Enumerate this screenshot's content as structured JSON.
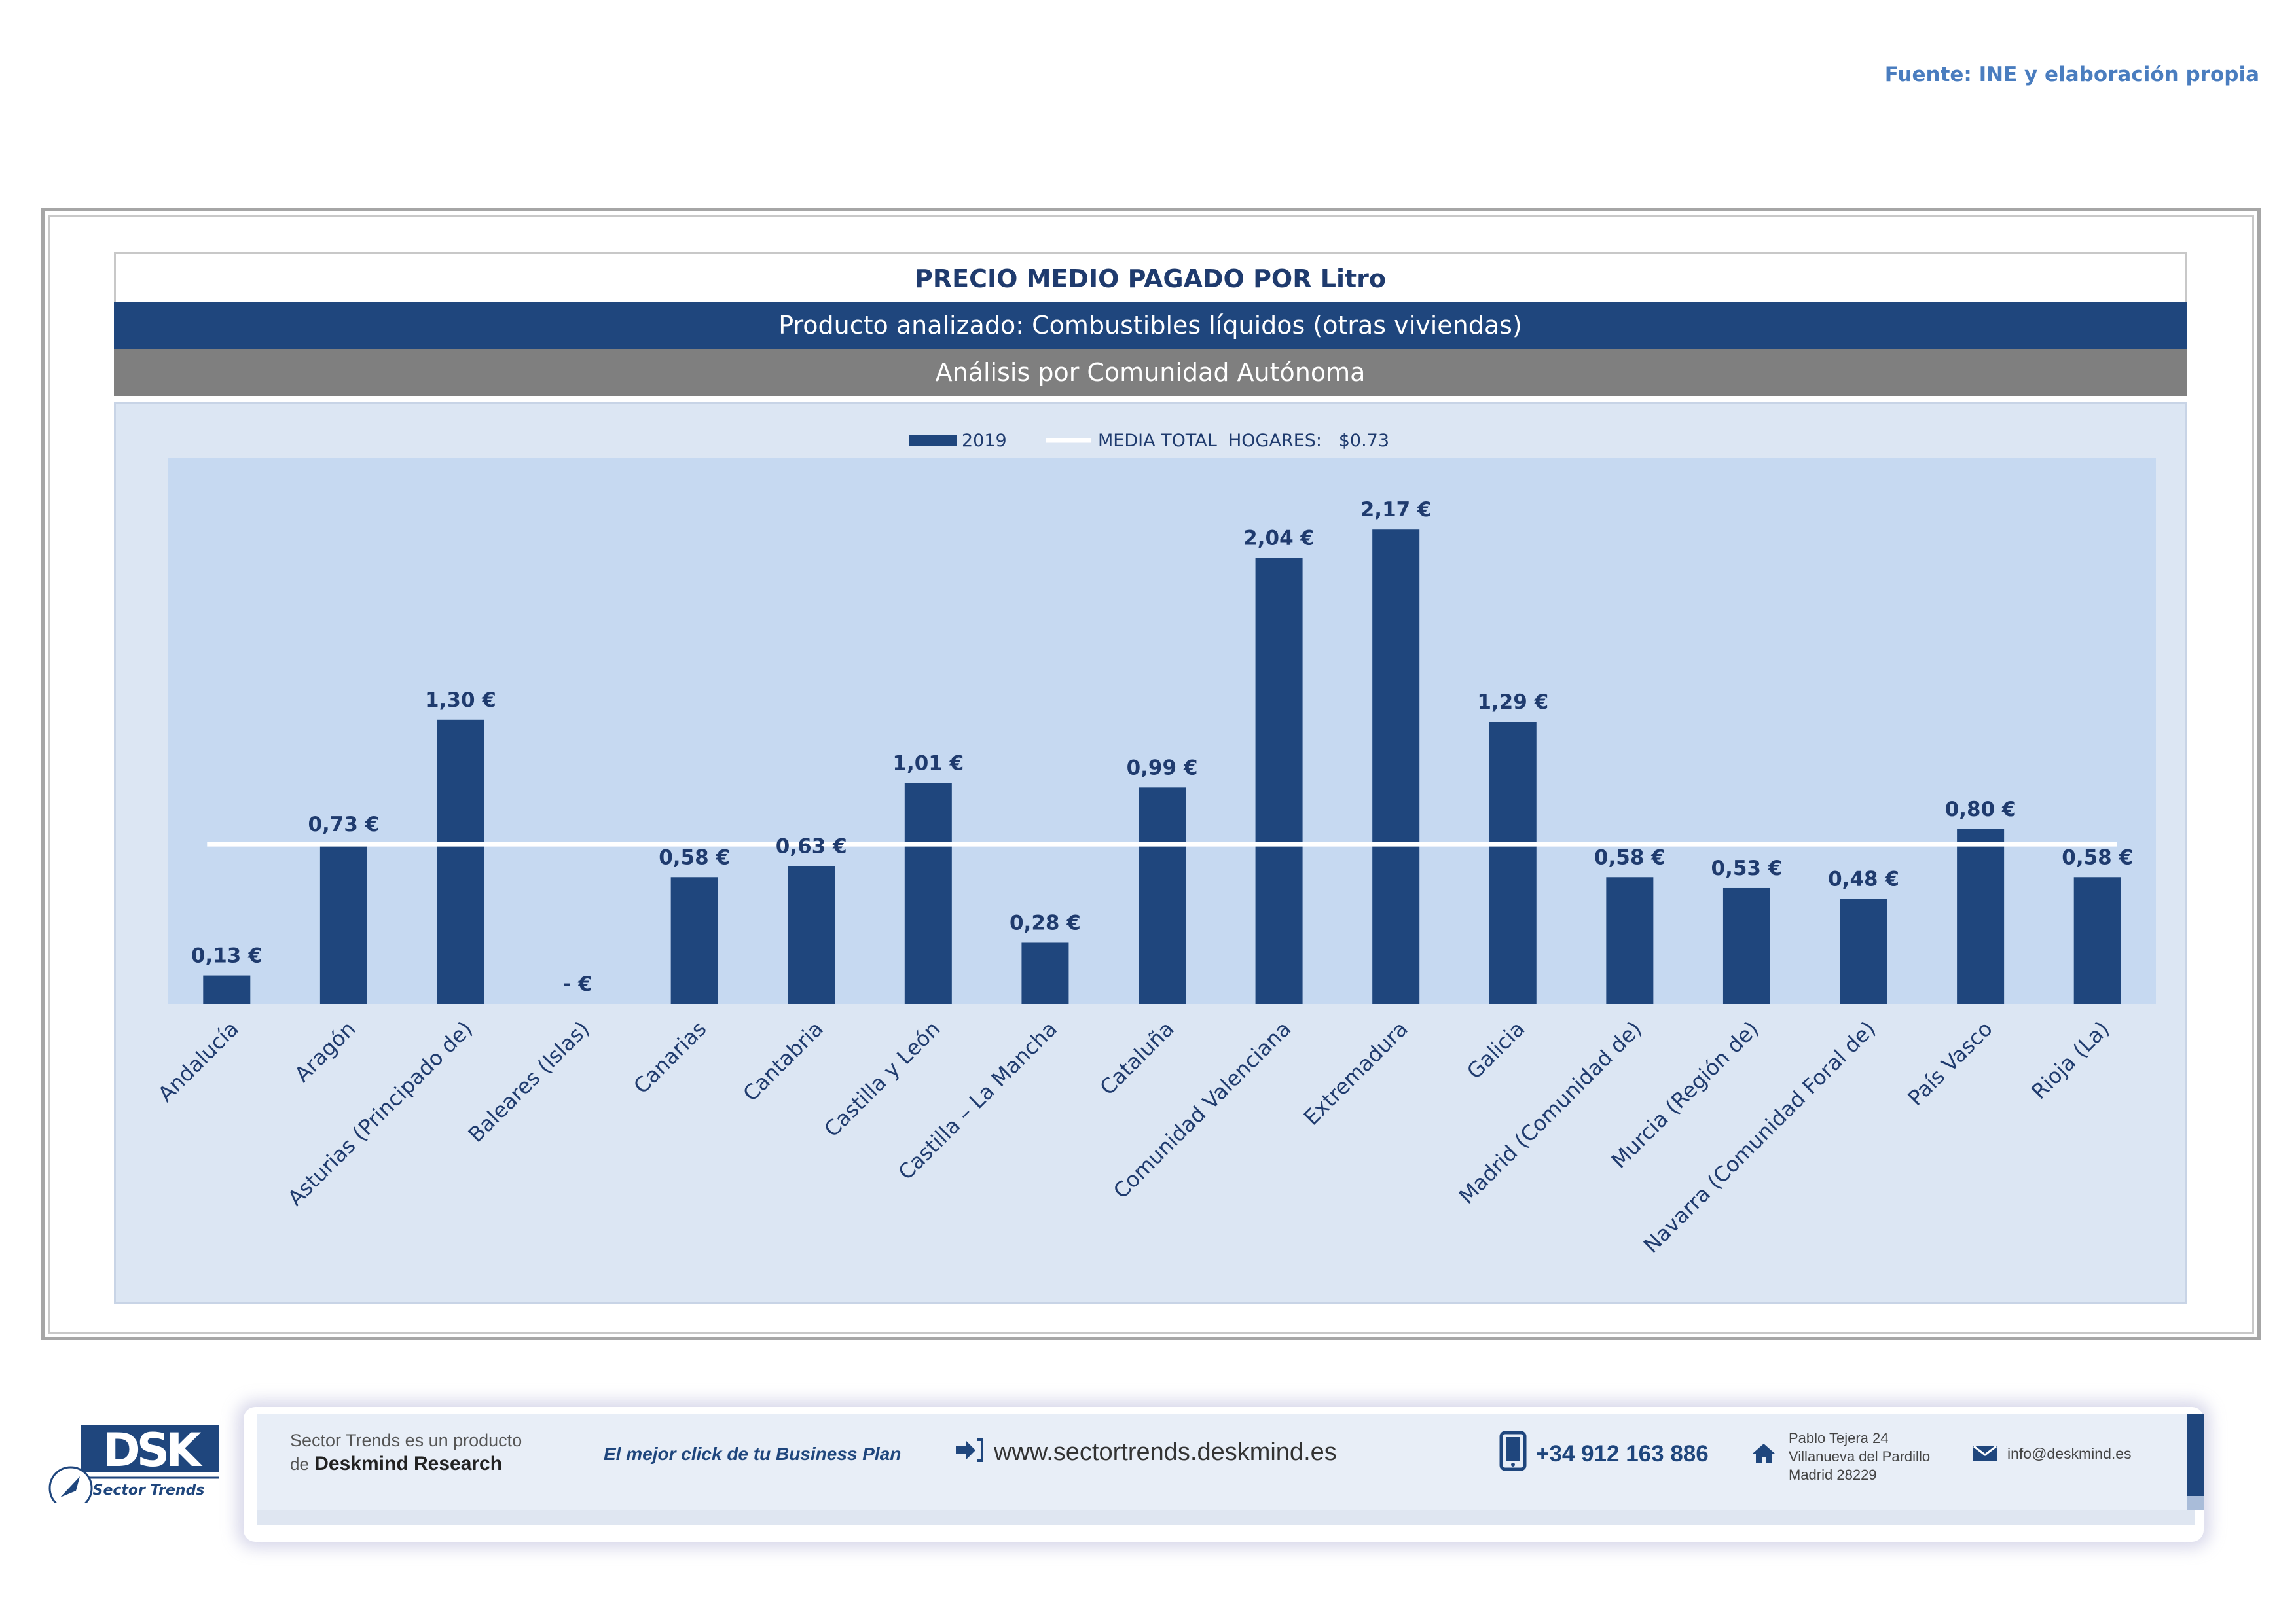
{
  "source": "Fuente: INE y elaboración propia",
  "header": {
    "title": "PRECIO MEDIO PAGADO POR Litro",
    "product": "Producto analizado: Combustibles líquidos (otras viviendas)",
    "analysis": "Análisis por Comunidad Autónoma"
  },
  "colors": {
    "bar": "#1f467d",
    "plot_bg": "#c6d9f1",
    "panel_bg": "#dce6f3",
    "mean_line": "#ffffff",
    "label": "#1f3b6e"
  },
  "chart_data": {
    "type": "bar",
    "title": "PRECIO MEDIO PAGADO POR Litro",
    "categories": [
      "Andalucía",
      "Aragón",
      "Asturias (Principado de)",
      "Baleares (Islas)",
      "Canarias",
      "Cantabria",
      "Castilla y León",
      "Castilla – La Mancha",
      "Cataluña",
      "Comunidad Valenciana",
      "Extremadura",
      "Galicia",
      "Madrid (Comunidad de)",
      "Murcia (Región de)",
      "Navarra (Comunidad Foral de)",
      "País Vasco",
      "Rioja (La)"
    ],
    "series": [
      {
        "name": "2019",
        "values": [
          0.13,
          0.73,
          1.3,
          0,
          0.58,
          0.63,
          1.01,
          0.28,
          0.99,
          2.04,
          2.17,
          1.29,
          0.58,
          0.53,
          0.48,
          0.8,
          0.58
        ],
        "data_labels": [
          "0,13 €",
          "0,73 €",
          "1,30 €",
          "-   €",
          "0,58 €",
          "0,63 €",
          "1,01 €",
          "0,28 €",
          "0,99 €",
          "2,04 €",
          "2,17 €",
          "1,29 €",
          "0,58 €",
          "0,53 €",
          "0,48 €",
          "0,80 €",
          "0,58 €"
        ]
      }
    ],
    "reference_line": {
      "name": "MEDIA TOTAL  HOGARES:   $0.73",
      "value": 0.73
    },
    "legend": {
      "placement": "top-center",
      "entries": [
        "2019",
        "MEDIA TOTAL  HOGARES:   $0.73"
      ]
    },
    "xlabel": "",
    "ylabel": "",
    "ylim": [
      0,
      2.5
    ],
    "grid": false
  },
  "footer": {
    "logo_text": "DSK",
    "logo_subtitle": "Sector Trends",
    "product_line1": "Sector Trends es un producto",
    "product_line2_prefix": "de",
    "product_line2_brand": "Deskmind Research",
    "tagline": "El mejor click de tu Business Plan",
    "website": "www.sectortrends.deskmind.es",
    "phone": "+34 912 163 886",
    "address_line1": "Pablo Tejera 24",
    "address_line2": "Villanueva del Pardillo",
    "address_line3": "Madrid 28229",
    "email": "info@deskmind.es"
  }
}
